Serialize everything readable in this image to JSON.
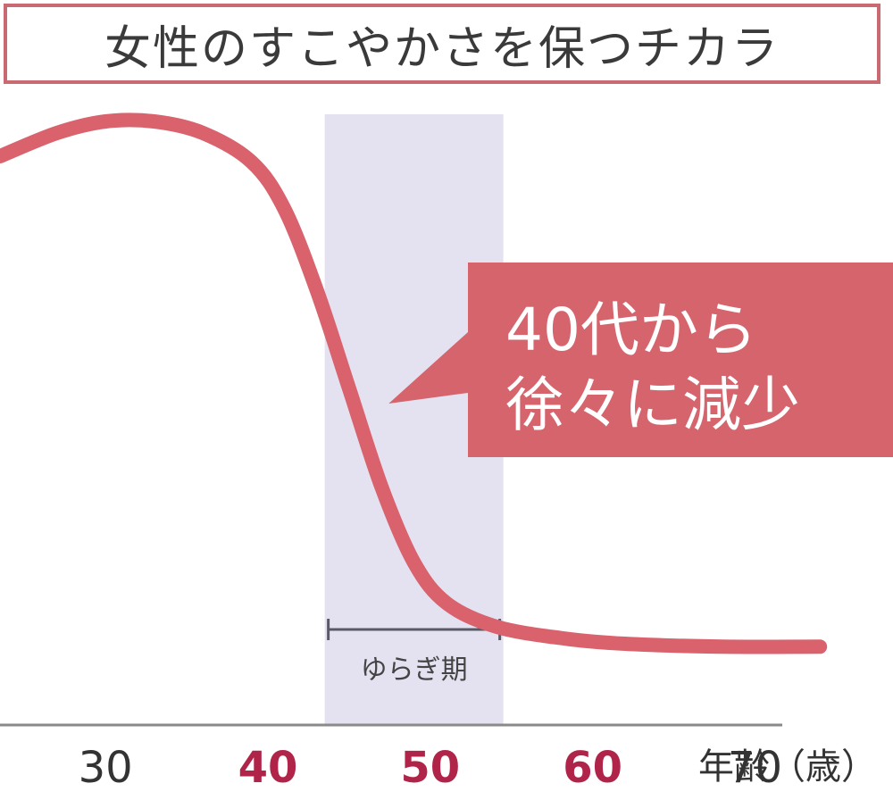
{
  "title": "女性のすこやかさを保つチカラ",
  "callout": {
    "line1": "40代から",
    "line2": "徐々に減少"
  },
  "period_label": "ゆらぎ期",
  "colors": {
    "curve": "#d9626d",
    "callout_bg": "#d5646c",
    "callout_text": "#ffffff",
    "band": "#e4e2f1",
    "highlight_tick": "#b0244a",
    "normal_tick": "#333333",
    "axis": "#8a8a8a",
    "title_border": "#c96a72"
  },
  "chart_data": {
    "type": "line",
    "title": "女性のすこやかさを保つチカラ",
    "xlabel": "年齢（歳）",
    "ylabel": "",
    "x_ticks": [
      30,
      40,
      50,
      60,
      70
    ],
    "highlighted_ticks": [
      40,
      50,
      60
    ],
    "xlim": [
      23.5,
      78.5
    ],
    "ylim": [
      0,
      100
    ],
    "y_axis_shown": false,
    "grid": false,
    "series": [
      {
        "values": [
          {
            "x": 23.5,
            "y": 90
          },
          {
            "x": 27,
            "y": 94
          },
          {
            "x": 30,
            "y": 96
          },
          {
            "x": 33,
            "y": 96
          },
          {
            "x": 36,
            "y": 94
          },
          {
            "x": 39,
            "y": 89
          },
          {
            "x": 41,
            "y": 81
          },
          {
            "x": 43,
            "y": 67
          },
          {
            "x": 45,
            "y": 50
          },
          {
            "x": 47,
            "y": 33
          },
          {
            "x": 49,
            "y": 20
          },
          {
            "x": 51,
            "y": 13
          },
          {
            "x": 54,
            "y": 9
          },
          {
            "x": 58,
            "y": 7
          },
          {
            "x": 62,
            "y": 6
          },
          {
            "x": 68,
            "y": 5.5
          },
          {
            "x": 74,
            "y": 5.5
          }
        ]
      }
    ],
    "highlight_band": {
      "x0": 43.5,
      "x1": 54.5,
      "label": "ゆらぎ期"
    },
    "annotation": {
      "text": "40代から 徐々に減少",
      "points_to_x": 47
    }
  }
}
